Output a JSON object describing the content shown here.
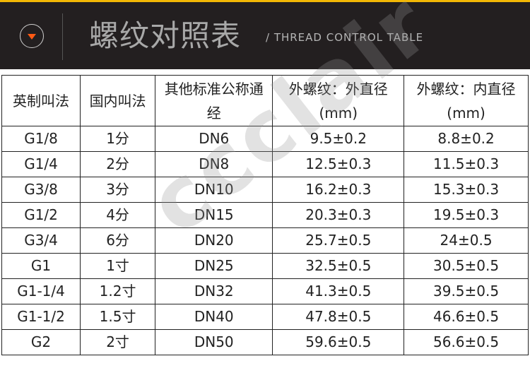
{
  "header": {
    "title": "螺纹对照表",
    "subtitle": "/ THREAD CONTROL TABLE",
    "icon": "chevron-down-circle-icon",
    "accent_color": "#ff5a14",
    "background_color": "#231f20",
    "top_line_color": "#f2b705"
  },
  "table": {
    "columns": [
      "英制叫法",
      "国内叫法",
      "其他标准公称通经",
      "外螺纹：外直径(mm)",
      "外螺纹：内直径(mm)"
    ],
    "rows": [
      [
        "G1/8",
        "1分",
        "DN6",
        "9.5±0.2",
        "8.8±0.2"
      ],
      [
        "G1/4",
        "2分",
        "DN8",
        "12.5±0.3",
        "11.5±0.3"
      ],
      [
        "G3/8",
        "3分",
        "DN10",
        "16.2±0.3",
        "15.3±0.3"
      ],
      [
        "G1/2",
        "4分",
        "DN15",
        "20.3±0.3",
        "19.5±0.3"
      ],
      [
        "G3/4",
        "6分",
        "DN20",
        "25.7±0.5",
        "24±0.5"
      ],
      [
        "G1",
        "1寸",
        "DN25",
        "32.5±0.5",
        "30.5±0.5"
      ],
      [
        "G1-1/4",
        "1.2寸",
        "DN32",
        "41.3±0.5",
        "39.5±0.5"
      ],
      [
        "G1-1/2",
        "1.5寸",
        "DN40",
        "47.8±0.5",
        "46.6±0.5"
      ],
      [
        "G2",
        "2寸",
        "DN50",
        "59.6±0.5",
        "56.6±0.5"
      ]
    ]
  },
  "watermark": "ccclair"
}
